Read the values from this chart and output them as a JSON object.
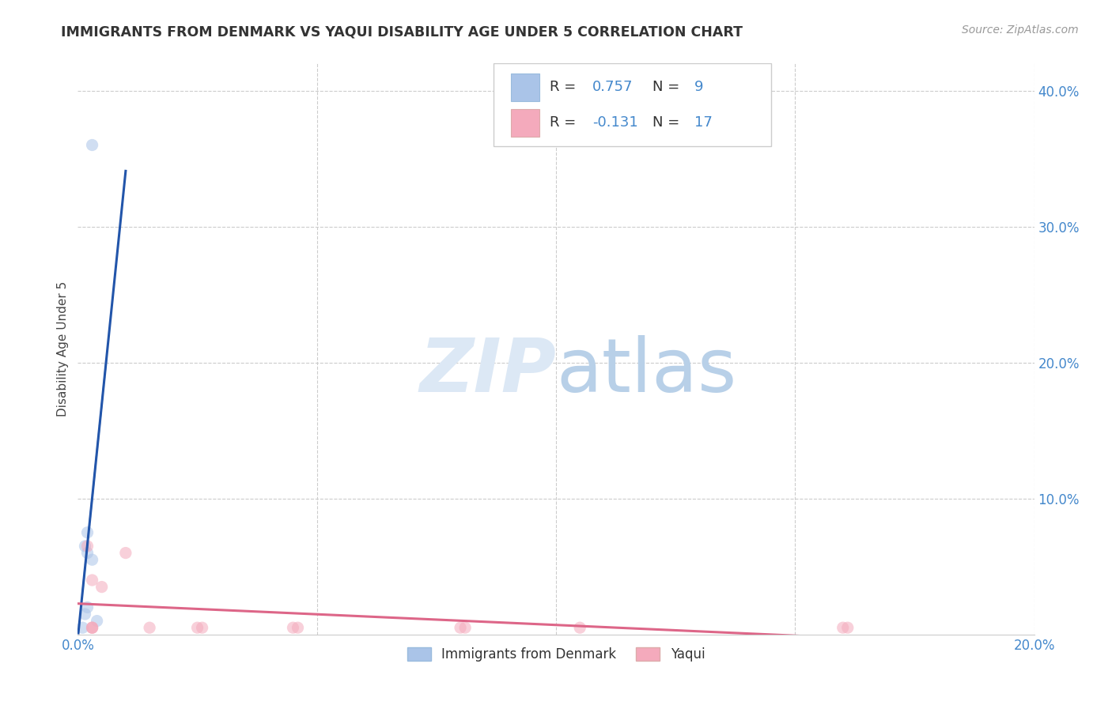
{
  "title": "IMMIGRANTS FROM DENMARK VS YAQUI DISABILITY AGE UNDER 5 CORRELATION CHART",
  "source": "Source: ZipAtlas.com",
  "ylabel_label": "Disability Age Under 5",
  "xlim": [
    0.0,
    0.2
  ],
  "ylim": [
    0.0,
    0.42
  ],
  "xticks": [
    0.0,
    0.05,
    0.1,
    0.15,
    0.2
  ],
  "xtick_labels": [
    "0.0%",
    "",
    "",
    "",
    "20.0%"
  ],
  "ytick_labels": [
    "",
    "10.0%",
    "20.0%",
    "30.0%",
    "40.0%"
  ],
  "yticks": [
    0.0,
    0.1,
    0.2,
    0.3,
    0.4
  ],
  "blue_R": 0.757,
  "blue_N": 9,
  "pink_R": -0.131,
  "pink_N": 17,
  "blue_scatter_x": [
    0.003,
    0.002,
    0.0015,
    0.002,
    0.003,
    0.002,
    0.0015,
    0.004,
    0.001
  ],
  "blue_scatter_y": [
    0.36,
    0.075,
    0.065,
    0.06,
    0.055,
    0.02,
    0.015,
    0.01,
    0.005
  ],
  "pink_scatter_x": [
    0.002,
    0.003,
    0.005,
    0.01,
    0.015,
    0.025,
    0.026,
    0.045,
    0.046,
    0.08,
    0.081,
    0.105,
    0.16,
    0.161,
    0.003,
    0.003,
    0.003
  ],
  "pink_scatter_y": [
    0.065,
    0.04,
    0.035,
    0.06,
    0.005,
    0.005,
    0.005,
    0.005,
    0.005,
    0.005,
    0.005,
    0.005,
    0.005,
    0.005,
    0.005,
    0.005,
    0.005
  ],
  "blue_color": "#aac4e8",
  "pink_color": "#f4aabc",
  "blue_line_color": "#2255aa",
  "pink_line_color": "#dd6688",
  "background_color": "#ffffff",
  "grid_color": "#cccccc",
  "title_color": "#333333",
  "source_color": "#999999",
  "watermark_color": "#dce8f5",
  "axis_label_color": "#4488cc",
  "legend_R_color": "#4488cc",
  "legend_N_color": "#4488cc",
  "marker_size": 11,
  "marker_alpha": 0.55
}
